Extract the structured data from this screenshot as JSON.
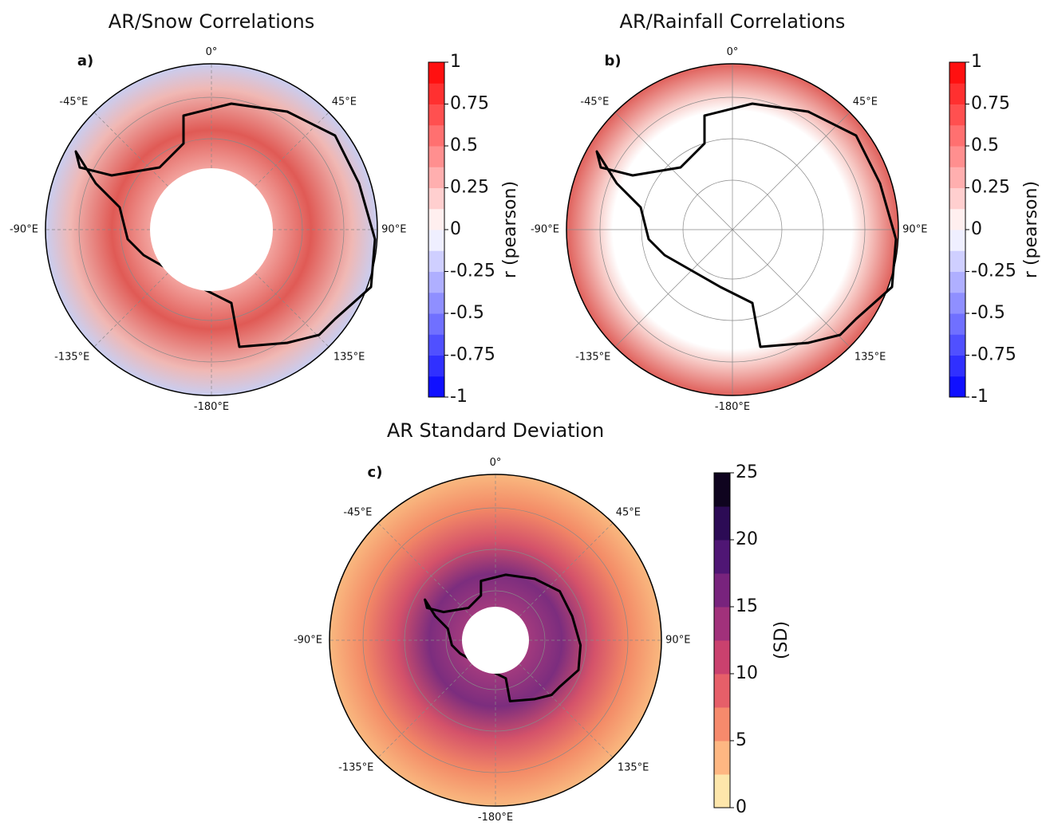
{
  "panels": [
    {
      "title": "AR/Snow Correlations",
      "label": "a)",
      "lon_labels": [
        "0°",
        "45°E",
        "90°E",
        "135°E",
        "-180°E",
        "-135°E",
        "-90°E",
        "-45°E"
      ],
      "colorbar": {
        "label": "r (pearson)",
        "lim": [
          -1,
          1
        ],
        "ticks": [
          -1,
          -0.75,
          -0.5,
          -0.25,
          0,
          0.25,
          0.5,
          0.75,
          1
        ],
        "colors": [
          "#0000ff",
          "#ffffff",
          "#ff0000"
        ]
      }
    },
    {
      "title": "AR/Rainfall Correlations",
      "label": "b)",
      "lon_labels": [
        "0°",
        "45°E",
        "90°E",
        "135°E",
        "-180°E",
        "-135°E",
        "-90°E",
        "-45°E"
      ],
      "colorbar": {
        "label": "r (pearson)",
        "lim": [
          -1,
          1
        ],
        "ticks": [
          -1,
          -0.75,
          -0.5,
          -0.25,
          0,
          0.25,
          0.5,
          0.75,
          1
        ],
        "colors": [
          "#0000ff",
          "#ffffff",
          "#ff0000"
        ]
      }
    },
    {
      "title": "AR Standard Deviation",
      "label": "c)",
      "lon_labels": [
        "0°",
        "45°E",
        "90°E",
        "135°E",
        "-180°E",
        "-135°E",
        "-90°E",
        "-45°E"
      ],
      "colorbar": {
        "label": "(SD)",
        "lim": [
          0,
          25
        ],
        "ticks": [
          0,
          5,
          10,
          15,
          20,
          25
        ],
        "colors": [
          "#fcfdbf",
          "#fe9f6d",
          "#de4968",
          "#8c2981",
          "#3b0f70",
          "#000004"
        ]
      }
    }
  ]
}
